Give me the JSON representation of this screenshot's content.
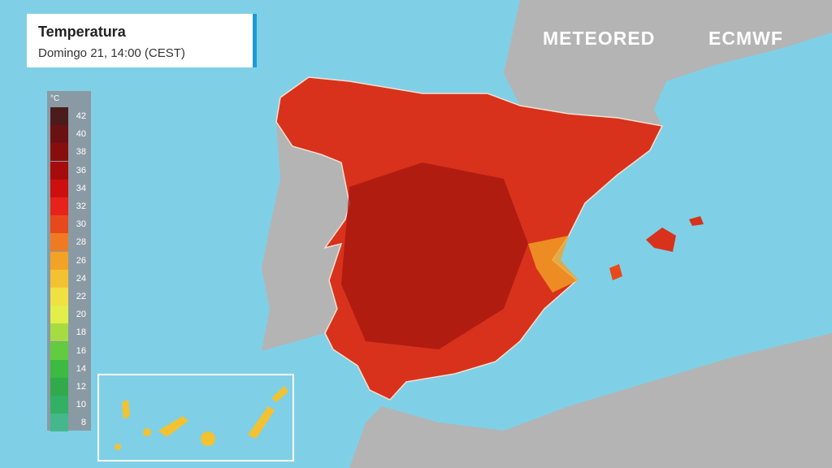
{
  "header": {
    "title": "Temperatura",
    "subtitle": "Domingo 21, 14:00 (CEST)"
  },
  "brands": [
    "METEORED",
    "ECMWF"
  ],
  "legend": {
    "unit": "°C",
    "items": [
      {
        "value": 42,
        "color": "#4a1c1c"
      },
      {
        "value": 40,
        "color": "#6a1212"
      },
      {
        "value": 38,
        "color": "#880e0e"
      },
      {
        "value": 36,
        "color": "#a60c0c"
      },
      {
        "value": 34,
        "color": "#cc1010"
      },
      {
        "value": 32,
        "color": "#e6231a"
      },
      {
        "value": 30,
        "color": "#e8491c"
      },
      {
        "value": 28,
        "color": "#f07a22"
      },
      {
        "value": 26,
        "color": "#f2a326"
      },
      {
        "value": 24,
        "color": "#f2c232"
      },
      {
        "value": 22,
        "color": "#f0e044"
      },
      {
        "value": 20,
        "color": "#e2ee4a"
      },
      {
        "value": 18,
        "color": "#a6dc42"
      },
      {
        "value": 16,
        "color": "#62cc40"
      },
      {
        "value": 14,
        "color": "#3cba42"
      },
      {
        "value": 12,
        "color": "#30aa4c"
      },
      {
        "value": 10,
        "color": "#32b064"
      },
      {
        "value": 8,
        "color": "#44b88a"
      }
    ]
  }
}
